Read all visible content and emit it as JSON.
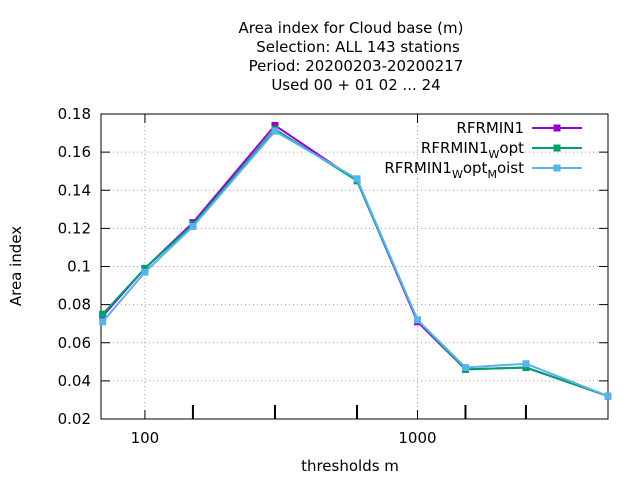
{
  "title_lines": [
    "Area index  for Cloud base (m)",
    "Selection: ALL    143 stations",
    "Period: 20200203-20200217",
    "Used  00 + 01 02 ... 24"
  ],
  "chart_data": {
    "type": "line",
    "xlabel": "thresholds m",
    "ylabel": "Area index",
    "x_scale": "log",
    "xlim": [
      69,
      5000
    ],
    "ylim": [
      0.02,
      0.18
    ],
    "grid": true,
    "legend_position": "top-right",
    "x_ticks": [
      100,
      1000
    ],
    "x_minor_ticks": [
      150,
      300,
      600,
      1500,
      2500
    ],
    "y_ticks": [
      "0.02",
      "0.04",
      "0.06",
      "0.08",
      "0.1",
      "0.12",
      "0.14",
      "0.16",
      "0.18"
    ],
    "series": [
      {
        "name_parts": [
          {
            "t": "RFRMIN1",
            "sub": false
          }
        ],
        "color": "#9400d3",
        "x": [
          70,
          100,
          150,
          300,
          600,
          1000,
          1500,
          2500,
          5000
        ],
        "y": [
          0.074,
          0.099,
          0.123,
          0.174,
          0.145,
          0.071,
          0.046,
          0.047,
          0.032
        ]
      },
      {
        "name_parts": [
          {
            "t": "RFRMIN1",
            "sub": false
          },
          {
            "t": "W",
            "sub": true
          },
          {
            "t": "opt",
            "sub": false
          }
        ],
        "color": "#009e73",
        "x": [
          70,
          100,
          150,
          300,
          600,
          1000,
          1500,
          2500,
          5000
        ],
        "y": [
          0.075,
          0.099,
          0.122,
          0.172,
          0.145,
          0.072,
          0.046,
          0.047,
          0.032
        ]
      },
      {
        "name_parts": [
          {
            "t": "RFRMIN1",
            "sub": false
          },
          {
            "t": "W",
            "sub": true
          },
          {
            "t": "opt",
            "sub": false
          },
          {
            "t": "M",
            "sub": true
          },
          {
            "t": "oist",
            "sub": false
          }
        ],
        "color": "#56b4e9",
        "x": [
          70,
          100,
          150,
          300,
          600,
          1000,
          1500,
          2500,
          5000
        ],
        "y": [
          0.071,
          0.097,
          0.121,
          0.171,
          0.146,
          0.072,
          0.047,
          0.049,
          0.032
        ]
      }
    ]
  }
}
